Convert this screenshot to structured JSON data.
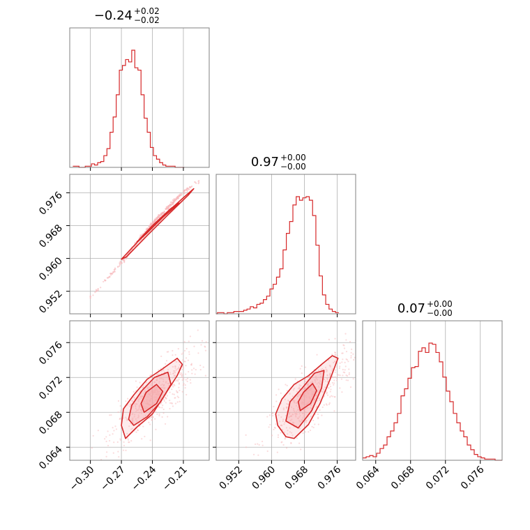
{
  "colors": {
    "line": "#d62728",
    "fill": "#f4a6a8",
    "dots": "#f7b8ba",
    "grid": "#b0b0b0",
    "frame": "#808080"
  },
  "chart_data": {
    "type": "corner",
    "parameters": [
      {
        "id": "p0",
        "title": {
          "main": "−0.24",
          "plus": "+0.02",
          "minus": "−0.02"
        },
        "range": [
          -0.32,
          -0.185
        ],
        "ticks": [
          -0.3,
          -0.27,
          -0.24,
          -0.21
        ],
        "tick_labels": [
          "−0.30",
          "−0.27",
          "−0.24",
          "−0.21"
        ],
        "hist": {
          "edges_start": -0.317,
          "bin_width": 0.003,
          "counts": [
            1,
            1,
            0,
            0,
            1,
            1,
            3,
            2,
            4,
            5,
            10,
            16,
            30,
            43,
            62,
            83,
            87,
            92,
            90,
            100,
            85,
            83,
            62,
            42,
            30,
            17,
            10,
            7,
            4,
            2,
            1,
            1,
            1,
            0,
            0,
            0
          ]
        }
      },
      {
        "id": "p1",
        "title": {
          "main": "0.97",
          "plus": "+0.00",
          "minus": "−0.00"
        },
        "range": [
          0.9465,
          0.9805
        ],
        "ticks": [
          0.952,
          0.96,
          0.968,
          0.976
        ],
        "tick_labels": [
          "0.952",
          "0.960",
          "0.968",
          "0.976"
        ],
        "hist": {
          "edges_start": 0.946,
          "bin_width": 0.0008,
          "counts": [
            0,
            1,
            1,
            0,
            1,
            1,
            2,
            2,
            2,
            3,
            4,
            6,
            5,
            8,
            9,
            12,
            15,
            21,
            25,
            31,
            38,
            54,
            68,
            78,
            92,
            99,
            96,
            98,
            99,
            96,
            83,
            58,
            32,
            16,
            8,
            4,
            2,
            1
          ]
        }
      },
      {
        "id": "p2",
        "title": {
          "main": "0.07",
          "plus": "+0.00",
          "minus": "−0.00"
        },
        "range": [
          0.0625,
          0.0785
        ],
        "ticks": [
          0.064,
          0.068,
          0.072,
          0.076
        ],
        "tick_labels": [
          "0.064",
          "0.068",
          "0.072",
          "0.076"
        ],
        "hist": {
          "edges_start": 0.0625,
          "bin_width": 0.0004,
          "counts": [
            2,
            3,
            4,
            3,
            6,
            10,
            13,
            20,
            25,
            32,
            40,
            55,
            61,
            70,
            79,
            80,
            93,
            96,
            92,
            100,
            99,
            92,
            84,
            71,
            59,
            50,
            40,
            32,
            25,
            20,
            13,
            9,
            5,
            3,
            2,
            1,
            1,
            1,
            0,
            0
          ]
        }
      }
    ],
    "pairs": [
      {
        "x": "p0",
        "y": "p1",
        "shape": "narrow-ridge",
        "center": [
          -0.238,
          0.969
        ],
        "samples_along_axis": [
          [
            -0.3,
            0.9505
          ],
          [
            -0.27,
            0.959
          ],
          [
            -0.24,
            0.9685
          ],
          [
            -0.215,
            0.975
          ],
          [
            -0.195,
            0.979
          ]
        ],
        "contour_levels": [
          {
            "name": "outer",
            "points": [
              [
                -0.27,
                0.9598
              ],
              [
                -0.25,
                0.9652
              ],
              [
                -0.23,
                0.9703
              ],
              [
                -0.21,
                0.9748
              ],
              [
                -0.2,
                0.977
              ],
              [
                -0.205,
                0.9755
              ],
              [
                -0.225,
                0.9706
              ],
              [
                -0.245,
                0.9656
              ],
              [
                -0.265,
                0.9604
              ]
            ]
          },
          {
            "name": "inner",
            "points": [
              [
                -0.255,
                0.964
              ],
              [
                -0.24,
                0.968
              ],
              [
                -0.222,
                0.9722
              ],
              [
                -0.214,
                0.9735
              ],
              [
                -0.23,
                0.97
              ],
              [
                -0.246,
                0.966
              ]
            ]
          }
        ]
      },
      {
        "x": "p0",
        "y": "p2",
        "shape": "tilted-ellipse",
        "center": [
          -0.238,
          0.0698
        ],
        "contour_levels": [
          {
            "name": "outer",
            "points": [
              [
                -0.266,
                0.065
              ],
              [
                -0.255,
                0.0663
              ],
              [
                -0.24,
                0.0678
              ],
              [
                -0.228,
                0.07
              ],
              [
                -0.216,
                0.0722
              ],
              [
                -0.211,
                0.0735
              ],
              [
                -0.216,
                0.0742
              ],
              [
                -0.23,
                0.073
              ],
              [
                -0.245,
                0.0718
              ],
              [
                -0.258,
                0.07
              ],
              [
                -0.268,
                0.0684
              ],
              [
                -0.27,
                0.0665
              ]
            ]
          },
          {
            "name": "middle",
            "points": [
              [
                -0.258,
                0.0665
              ],
              [
                -0.245,
                0.0675
              ],
              [
                -0.232,
                0.0692
              ],
              [
                -0.222,
                0.0712
              ],
              [
                -0.225,
                0.0726
              ],
              [
                -0.238,
                0.072
              ],
              [
                -0.25,
                0.0705
              ],
              [
                -0.26,
                0.0688
              ],
              [
                -0.263,
                0.0672
              ]
            ]
          },
          {
            "name": "inner",
            "points": [
              [
                -0.248,
                0.068
              ],
              [
                -0.236,
                0.069
              ],
              [
                -0.23,
                0.0704
              ],
              [
                -0.236,
                0.0712
              ],
              [
                -0.246,
                0.0703
              ],
              [
                -0.251,
                0.069
              ]
            ]
          }
        ]
      },
      {
        "x": "p1",
        "y": "p2",
        "shape": "tilted-ellipse",
        "center": [
          0.9695,
          0.0698
        ],
        "contour_levels": [
          {
            "name": "outer",
            "points": [
              [
                0.9615,
                0.0665
              ],
              [
                0.9635,
                0.0652
              ],
              [
                0.9655,
                0.065
              ],
              [
                0.969,
                0.0666
              ],
              [
                0.9718,
                0.069
              ],
              [
                0.9742,
                0.0717
              ],
              [
                0.9762,
                0.0742
              ],
              [
                0.9748,
                0.0745
              ],
              [
                0.9722,
                0.0735
              ],
              [
                0.969,
                0.0722
              ],
              [
                0.9655,
                0.0712
              ],
              [
                0.9625,
                0.0695
              ],
              [
                0.961,
                0.0678
              ]
            ]
          },
          {
            "name": "middle",
            "points": [
              [
                0.9635,
                0.067
              ],
              [
                0.9665,
                0.0662
              ],
              [
                0.9698,
                0.0682
              ],
              [
                0.9722,
                0.0708
              ],
              [
                0.9728,
                0.0728
              ],
              [
                0.9705,
                0.0725
              ],
              [
                0.9675,
                0.0708
              ],
              [
                0.9645,
                0.0692
              ]
            ]
          },
          {
            "name": "inner",
            "points": [
              [
                0.967,
                0.0682
              ],
              [
                0.9695,
                0.069
              ],
              [
                0.971,
                0.0705
              ],
              [
                0.97,
                0.0713
              ],
              [
                0.9678,
                0.0703
              ],
              [
                0.9665,
                0.0692
              ]
            ]
          }
        ]
      }
    ],
    "grid": true
  }
}
